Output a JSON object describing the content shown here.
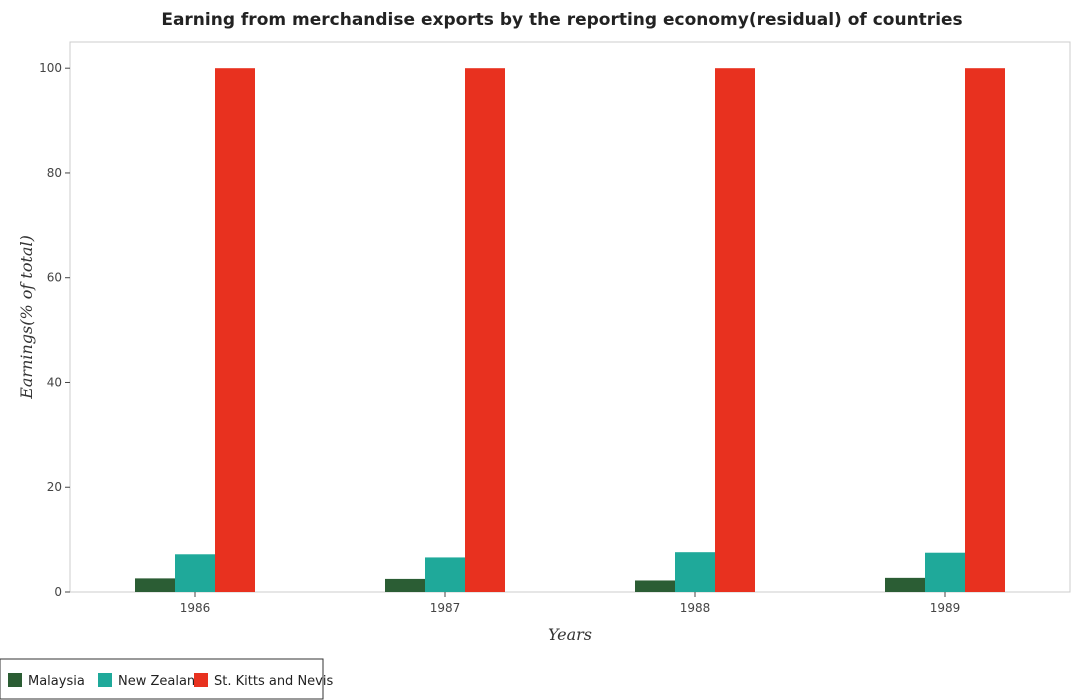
{
  "chart_data": {
    "type": "bar",
    "title": "Earning from merchandise exports by the reporting economy(residual) of countries",
    "xlabel": "Years",
    "ylabel": "Earnings(% of total)",
    "categories": [
      "1986",
      "1987",
      "1988",
      "1989"
    ],
    "ylim": [
      0,
      105
    ],
    "yticks": [
      "0",
      "20",
      "40",
      "60",
      "80",
      "100"
    ],
    "series": [
      {
        "name": "Malaysia",
        "color": "#2b5d34",
        "values": [
          2.6,
          2.5,
          2.2,
          2.7
        ]
      },
      {
        "name": "New Zealand",
        "color": "#1fa99a",
        "values": [
          7.2,
          6.6,
          7.6,
          7.5
        ]
      },
      {
        "name": "St. Kitts and Nevis",
        "color": "#e8311f",
        "values": [
          100,
          100,
          100,
          100
        ]
      }
    ],
    "grid": false,
    "legend": "bottom-left"
  }
}
